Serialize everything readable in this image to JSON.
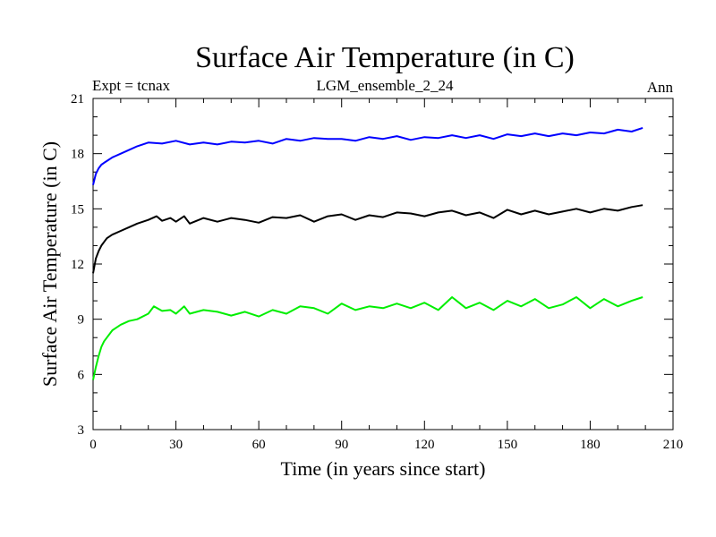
{
  "chart_data": {
    "type": "line",
    "title": "Surface Air Temperature (in C)",
    "header_left": "Expt = tcnax",
    "header_center": "LGM_ensemble_2_24",
    "header_right": "Ann",
    "xlabel": "Time (in years since start)",
    "ylabel": "Surface Air Temperature (in C)",
    "xlim": [
      0,
      210
    ],
    "ylim": [
      3,
      21
    ],
    "x_ticks": [
      0,
      30,
      60,
      90,
      120,
      150,
      180,
      210
    ],
    "y_ticks": [
      3,
      6,
      9,
      12,
      15,
      18,
      21
    ],
    "series": [
      {
        "name": "blue",
        "color": "#0000ff",
        "x": [
          0,
          1,
          2,
          3,
          4,
          5,
          7,
          10,
          13,
          16,
          20,
          25,
          30,
          35,
          40,
          45,
          50,
          55,
          60,
          65,
          70,
          75,
          80,
          85,
          90,
          95,
          100,
          105,
          110,
          115,
          120,
          125,
          130,
          135,
          140,
          145,
          150,
          155,
          160,
          165,
          170,
          175,
          180,
          185,
          190,
          195,
          199
        ],
        "values": [
          16.3,
          16.9,
          17.2,
          17.4,
          17.5,
          17.6,
          17.8,
          18.0,
          18.2,
          18.4,
          18.6,
          18.55,
          18.7,
          18.5,
          18.6,
          18.5,
          18.65,
          18.6,
          18.7,
          18.55,
          18.8,
          18.7,
          18.85,
          18.8,
          18.8,
          18.7,
          18.9,
          18.8,
          18.95,
          18.75,
          18.9,
          18.85,
          19.0,
          18.85,
          19.0,
          18.8,
          19.05,
          18.95,
          19.1,
          18.95,
          19.1,
          19.0,
          19.15,
          19.1,
          19.3,
          19.2,
          19.4
        ]
      },
      {
        "name": "black",
        "color": "#000000",
        "x": [
          0,
          1,
          2,
          3,
          4,
          5,
          7,
          10,
          13,
          16,
          20,
          23,
          25,
          28,
          30,
          33,
          35,
          40,
          45,
          50,
          55,
          60,
          65,
          70,
          75,
          80,
          85,
          90,
          95,
          100,
          105,
          110,
          115,
          120,
          125,
          130,
          135,
          140,
          145,
          150,
          155,
          160,
          165,
          170,
          175,
          180,
          185,
          190,
          195,
          199
        ],
        "values": [
          11.5,
          12.3,
          12.7,
          13.0,
          13.2,
          13.4,
          13.6,
          13.8,
          14.0,
          14.2,
          14.4,
          14.6,
          14.35,
          14.5,
          14.3,
          14.6,
          14.2,
          14.5,
          14.3,
          14.5,
          14.4,
          14.25,
          14.55,
          14.5,
          14.65,
          14.3,
          14.6,
          14.7,
          14.4,
          14.65,
          14.55,
          14.8,
          14.75,
          14.6,
          14.8,
          14.9,
          14.65,
          14.8,
          14.5,
          14.95,
          14.7,
          14.9,
          14.7,
          14.85,
          15.0,
          14.8,
          15.0,
          14.9,
          15.1,
          15.2
        ]
      },
      {
        "name": "green",
        "color": "#00ee00",
        "x": [
          0,
          1,
          2,
          3,
          4,
          5,
          7,
          10,
          13,
          16,
          20,
          22,
          25,
          28,
          30,
          33,
          35,
          40,
          45,
          50,
          55,
          60,
          65,
          70,
          75,
          80,
          85,
          90,
          95,
          100,
          105,
          110,
          115,
          120,
          125,
          130,
          135,
          140,
          145,
          150,
          155,
          160,
          165,
          170,
          175,
          180,
          185,
          190,
          195,
          199
        ],
        "values": [
          5.7,
          6.4,
          7.0,
          7.5,
          7.8,
          8.0,
          8.4,
          8.7,
          8.9,
          9.0,
          9.3,
          9.7,
          9.45,
          9.5,
          9.3,
          9.7,
          9.3,
          9.5,
          9.4,
          9.2,
          9.4,
          9.15,
          9.5,
          9.3,
          9.7,
          9.6,
          9.3,
          9.85,
          9.5,
          9.7,
          9.6,
          9.85,
          9.6,
          9.9,
          9.5,
          10.2,
          9.6,
          9.9,
          9.5,
          10.0,
          9.7,
          10.1,
          9.6,
          9.8,
          10.2,
          9.6,
          10.1,
          9.7,
          10.0,
          10.2
        ]
      }
    ]
  }
}
